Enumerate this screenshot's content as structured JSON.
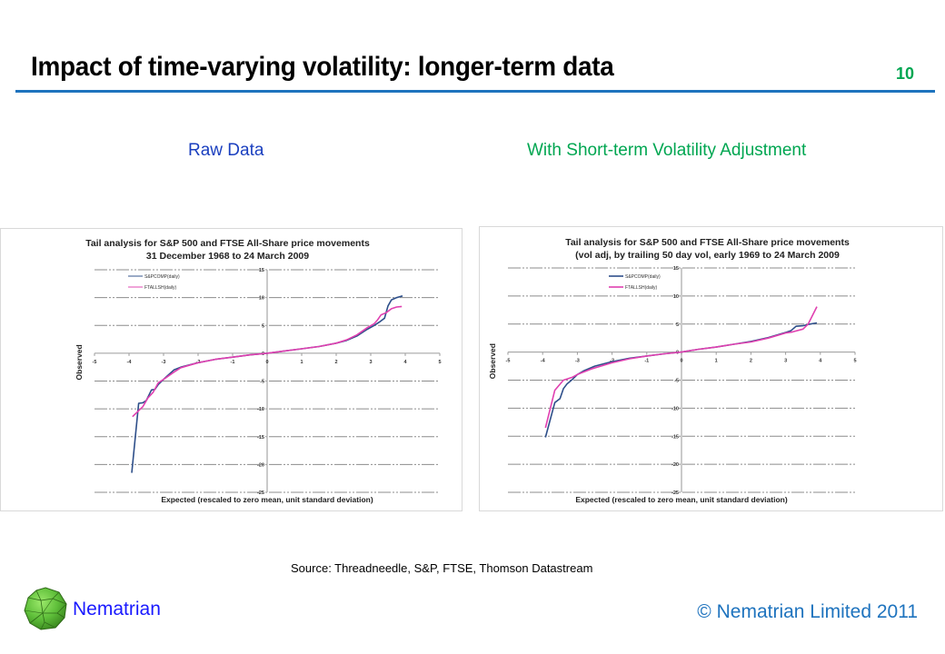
{
  "slide": {
    "title": "Impact of time-varying volatility: longer-term data",
    "page_number": "10",
    "subtitle_left": "Raw Data",
    "subtitle_right": "With Short-term Volatility Adjustment",
    "source": "Source: Threadneedle,  S&P, FTSE, Thomson Datastream",
    "brand": "Nematrian",
    "copyright": "© Nematrian Limited 2011",
    "logo_icon": "green-polyhedron-icon",
    "colors": {
      "title_rule": "#1e73be",
      "page_number": "#00a651",
      "subtitle_left": "#1a3fbf",
      "subtitle_right": "#00a651",
      "brand": "#1a1aff",
      "copyright": "#1e73be"
    }
  },
  "chart_data": [
    {
      "type": "line",
      "title": "Tail analysis for S&P 500 and FTSE All-Share price movements",
      "subtitle": "31 December 1968 to 24 March 2009",
      "xlabel": "Expected (rescaled to zero mean, unit standard deviation)",
      "ylabel": "Observed",
      "xlim": [
        -5,
        5
      ],
      "ylim": [
        -25,
        15
      ],
      "xticks": [
        -5,
        -4,
        -3,
        -2,
        -1,
        0,
        1,
        2,
        3,
        4,
        5
      ],
      "yticks": [
        15,
        10,
        5,
        0,
        -5,
        -10,
        -15,
        -20,
        -25
      ],
      "grid": true,
      "legend": "top-left",
      "series": [
        {
          "name": "S&PCOMP(daily)",
          "color": "#2e4f8a",
          "x": [
            -3.92,
            -3.72,
            -3.6,
            -3.5,
            -3.42,
            -3.35,
            -3.25,
            -3.15,
            -3.05,
            -2.95,
            -2.7,
            -2.5,
            -2.0,
            -1.5,
            -1.0,
            -0.5,
            0,
            0.5,
            1.0,
            1.5,
            2.0,
            2.3,
            2.6,
            2.9,
            3.1,
            3.25,
            3.4,
            3.5,
            3.6,
            3.75,
            3.92
          ],
          "y": [
            -21.5,
            -9.0,
            -8.9,
            -8.5,
            -7.5,
            -6.6,
            -6.5,
            -5.6,
            -5.0,
            -4.4,
            -3.0,
            -2.5,
            -1.7,
            -1.1,
            -0.7,
            -0.3,
            0,
            0.4,
            0.8,
            1.2,
            1.8,
            2.3,
            3.1,
            4.3,
            5.0,
            5.6,
            6.3,
            8.5,
            9.6,
            10.0,
            10.3
          ]
        },
        {
          "name": "FTALLSH(daily)",
          "color": "#e040b0",
          "x": [
            -3.9,
            -3.6,
            -3.45,
            -3.3,
            -3.15,
            -3.0,
            -2.7,
            -2.5,
            -2.0,
            -1.5,
            -1.0,
            -0.5,
            0,
            0.5,
            1.0,
            1.5,
            2.0,
            2.3,
            2.6,
            2.9,
            3.1,
            3.2,
            3.3,
            3.45,
            3.6,
            3.75,
            3.9
          ],
          "y": [
            -11.4,
            -9.6,
            -8.0,
            -7.0,
            -5.3,
            -4.7,
            -3.4,
            -2.6,
            -1.7,
            -1.1,
            -0.7,
            -0.3,
            0,
            0.4,
            0.8,
            1.2,
            1.8,
            2.4,
            3.3,
            4.6,
            5.3,
            6.0,
            6.9,
            7.3,
            8.0,
            8.3,
            8.4
          ]
        }
      ]
    },
    {
      "type": "line",
      "title": "Tail analysis for S&P 500 and FTSE All-Share price movements",
      "subtitle": "(vol adj, by trailing 50 day vol, early 1969 to 24 March 2009",
      "xlabel": "Expected (rescaled to zero mean, unit standard deviation)",
      "ylabel": "Observed",
      "xlim": [
        -5,
        5
      ],
      "ylim": [
        -25,
        15
      ],
      "xticks": [
        -5,
        -4,
        -3,
        -2,
        -1,
        0,
        1,
        2,
        3,
        4,
        5
      ],
      "yticks": [
        15,
        10,
        5,
        0,
        -5,
        -10,
        -15,
        -20,
        -25
      ],
      "grid": true,
      "legend": "top-left",
      "series": [
        {
          "name": "S&PCOMP(daily)",
          "color": "#2e4f8a",
          "x": [
            -3.92,
            -3.65,
            -3.5,
            -3.4,
            -3.3,
            -3.15,
            -3.0,
            -2.8,
            -2.5,
            -2.0,
            -1.5,
            -1.0,
            -0.5,
            0,
            0.5,
            1.0,
            1.5,
            2.0,
            2.5,
            3.0,
            3.15,
            3.3,
            3.5,
            3.7,
            3.9
          ],
          "y": [
            -15.2,
            -9.0,
            -8.3,
            -6.5,
            -5.7,
            -4.9,
            -4.0,
            -3.3,
            -2.5,
            -1.7,
            -1.1,
            -0.7,
            -0.3,
            0,
            0.5,
            0.9,
            1.4,
            1.9,
            2.6,
            3.5,
            3.8,
            4.6,
            4.7,
            5.0,
            5.2
          ]
        },
        {
          "name": "FTALLSH(daily)",
          "color": "#e040b0",
          "x": [
            -3.92,
            -3.65,
            -3.4,
            -3.15,
            -3.0,
            -2.6,
            -2.0,
            -1.5,
            -1.0,
            -0.5,
            0,
            0.5,
            1.0,
            1.5,
            2.0,
            2.5,
            3.0,
            3.2,
            3.5,
            3.65,
            3.9
          ],
          "y": [
            -13.5,
            -6.8,
            -5.0,
            -4.5,
            -4.0,
            -3.0,
            -1.9,
            -1.2,
            -0.7,
            -0.3,
            0,
            0.5,
            0.9,
            1.4,
            1.8,
            2.5,
            3.4,
            3.6,
            4.1,
            5.0,
            8.1
          ]
        }
      ]
    }
  ]
}
